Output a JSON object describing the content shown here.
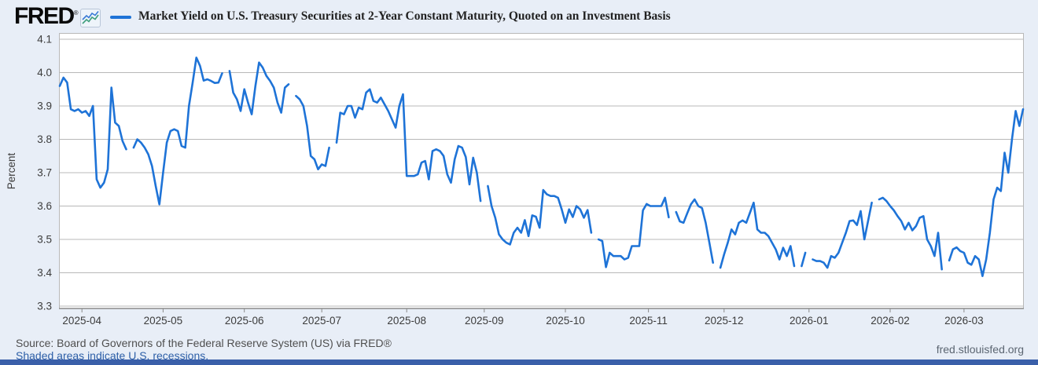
{
  "header": {
    "brand": "FRED",
    "registered_mark": "®",
    "legend_label": "Market Yield on U.S. Treasury Securities at 2-Year Constant Maturity, Quoted on an Investment Basis"
  },
  "footer": {
    "source": "Source: Board of Governors of the Federal Reserve System (US) via FRED®",
    "recession_note": "Shaded areas indicate U.S. recessions.",
    "site_link": "fred.stlouisfed.org"
  },
  "colors": {
    "line": "#1e73d7",
    "background": "#e8eef7",
    "plot_background": "#ffffff",
    "gridline": "#b8b8b8",
    "axis": "#8a8a8a",
    "bottom_bar": "#3a5fa9",
    "link": "#2d5fa7"
  },
  "chart_data": {
    "type": "line",
    "title": "Market Yield on U.S. Treasury Securities at 2-Year Constant Maturity, Quoted on an Investment Basis",
    "ylabel": "Percent",
    "ylim": [
      3.3,
      4.1
    ],
    "y_ticks": [
      4.1,
      4.0,
      3.9,
      3.8,
      3.7,
      3.6,
      3.5,
      3.4,
      3.3
    ],
    "x_tick_labels": [
      "2025-04",
      "2025-05",
      "2025-06",
      "2025-07",
      "2025-08",
      "2025-09",
      "2025-10",
      "2025-11",
      "2025-12",
      "2026-01",
      "2026-02",
      "2026-03"
    ],
    "x_tick_indices": [
      6,
      28,
      50,
      71,
      94,
      115,
      137,
      159.5,
      180,
      203,
      225,
      245
    ],
    "x_start": "2025-03-24",
    "x_end": "2026-03-24",
    "frequency": "daily (weekdays; null = market holiday gap)",
    "legend_position": "top",
    "grid": "horizontal",
    "values": [
      3.96,
      3.985,
      3.97,
      3.89,
      3.885,
      3.89,
      3.88,
      3.885,
      3.87,
      3.9,
      3.68,
      3.655,
      3.67,
      3.71,
      3.955,
      3.85,
      3.84,
      3.795,
      3.77,
      null,
      3.775,
      3.8,
      3.79,
      3.775,
      3.755,
      3.72,
      3.66,
      3.605,
      3.7,
      3.79,
      3.825,
      3.83,
      3.825,
      3.78,
      3.775,
      3.9,
      3.97,
      4.045,
      4.02,
      3.976,
      3.98,
      3.975,
      3.969,
      3.97,
      3.998,
      null,
      4.005,
      3.94,
      3.92,
      3.885,
      3.95,
      3.91,
      3.875,
      3.96,
      4.03,
      4.015,
      3.99,
      3.975,
      3.955,
      3.91,
      3.88,
      3.955,
      3.965,
      null,
      3.93,
      3.92,
      3.9,
      3.84,
      3.75,
      3.74,
      3.71,
      3.725,
      3.72,
      3.775,
      null,
      3.79,
      3.88,
      3.875,
      3.9,
      3.9,
      3.865,
      3.895,
      3.89,
      3.94,
      3.95,
      3.915,
      3.91,
      3.925,
      3.905,
      3.885,
      3.86,
      3.835,
      3.9,
      3.935,
      3.69,
      3.69,
      3.69,
      3.695,
      3.73,
      3.735,
      3.68,
      3.765,
      3.77,
      3.765,
      3.75,
      3.695,
      3.67,
      3.74,
      3.78,
      3.775,
      3.747,
      3.665,
      3.745,
      3.7,
      3.615,
      null,
      3.66,
      3.6,
      3.565,
      3.515,
      3.5,
      3.49,
      3.485,
      3.52,
      3.535,
      3.52,
      3.558,
      3.51,
      3.572,
      3.568,
      3.535,
      3.648,
      3.635,
      3.63,
      3.63,
      3.625,
      3.59,
      3.55,
      3.59,
      3.567,
      3.6,
      3.59,
      3.565,
      3.588,
      3.52,
      null,
      3.5,
      3.495,
      3.417,
      3.46,
      3.45,
      3.45,
      3.45,
      3.44,
      3.445,
      3.48,
      3.48,
      3.48,
      3.587,
      3.606,
      3.6,
      3.6,
      3.6,
      3.6,
      3.625,
      3.566,
      null,
      3.582,
      3.554,
      3.55,
      3.578,
      3.605,
      3.62,
      3.6,
      3.594,
      3.55,
      3.49,
      3.43,
      null,
      3.415,
      3.455,
      3.49,
      3.53,
      3.515,
      3.55,
      3.557,
      3.55,
      3.58,
      3.61,
      3.53,
      3.52,
      3.52,
      3.51,
      3.49,
      3.47,
      3.44,
      3.475,
      3.45,
      3.48,
      3.42,
      null,
      3.42,
      3.46,
      null,
      3.44,
      3.435,
      3.435,
      3.43,
      3.415,
      3.45,
      3.445,
      3.46,
      3.49,
      3.52,
      3.555,
      3.557,
      3.543,
      3.585,
      3.5,
      3.555,
      3.61,
      null,
      3.62,
      3.625,
      3.615,
      3.6,
      3.587,
      3.57,
      3.555,
      3.53,
      3.55,
      3.527,
      3.54,
      3.565,
      3.57,
      3.5,
      3.48,
      3.45,
      3.52,
      3.41,
      null,
      3.437,
      3.47,
      3.476,
      3.465,
      3.46,
      3.43,
      3.424,
      3.45,
      3.44,
      3.39,
      3.44,
      3.52,
      3.62,
      3.655,
      3.645,
      3.76,
      3.7,
      3.8,
      3.885,
      3.84,
      3.89
    ]
  }
}
